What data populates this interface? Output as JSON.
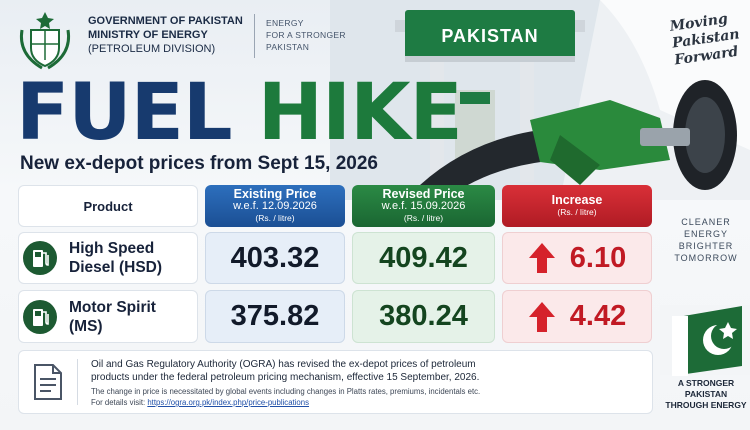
{
  "header": {
    "lines": [
      "GOVERNMENT OF PAKISTAN",
      "MINISTRY OF ENERGY",
      "(PETROLEUM DIVISION)"
    ],
    "tagline": [
      "ENERGY",
      "FOR A STRONGER",
      "PAKISTAN"
    ]
  },
  "station_sign": "PAKISTAN",
  "slogan": [
    "Moving",
    "Pakistan",
    "Forward"
  ],
  "title": {
    "part1": "FUEL",
    "part2": "HIKE"
  },
  "subtitle": "New ex-depot prices from Sept 15, 2026",
  "table": {
    "columns": [
      {
        "title": "Product"
      },
      {
        "title": "Existing Price",
        "note": "w.e.f. 12.09.2026",
        "unit": "(Rs. / litre)"
      },
      {
        "title": "Revised Price",
        "note": "w.e.f. 15.09.2026",
        "unit": "(Rs. / litre)"
      },
      {
        "title": "Increase",
        "unit": "(Rs. / litre)"
      }
    ],
    "rows": [
      {
        "product": [
          "High Speed",
          "Diesel (HSD)"
        ],
        "existing": "403.32",
        "revised": "409.42",
        "increase": "6.10"
      },
      {
        "product": [
          "Motor Spirit",
          "(MS)"
        ],
        "existing": "375.82",
        "revised": "380.24",
        "increase": "4.42"
      }
    ]
  },
  "side_text": [
    "CLEANER",
    "ENERGY",
    "BRIGHTER",
    "TOMORROW"
  ],
  "badge": [
    "A STRONGER",
    "PAKISTAN",
    "THROUGH ENERGY"
  ],
  "notice": {
    "main": "Oil and Gas Regulatory Authority (OGRA) has revised the ex-depot prices of petroleum products under the federal petroleum pricing mechanism, effective 15 September, 2026.",
    "detail": "The change in price is necessitated by global events including changes in Platts rates, premiums, incidentals etc.",
    "link_prefix": "For details visit:",
    "link": "https://ogra.org.pk/index.php/price-publications"
  }
}
